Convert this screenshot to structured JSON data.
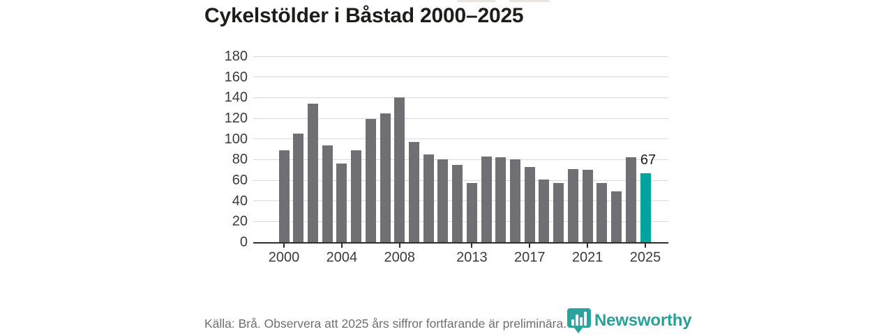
{
  "page": {
    "background": "#ffffff"
  },
  "header": {
    "title": "Cykelstölder i Båstad 2000–2025"
  },
  "chart_data": {
    "type": "bar",
    "title": "Cykelstölder i Båstad 2000–2025",
    "categories": [
      2000,
      2001,
      2002,
      2003,
      2004,
      2005,
      2006,
      2007,
      2008,
      2009,
      2010,
      2011,
      2012,
      2013,
      2014,
      2015,
      2016,
      2017,
      2018,
      2019,
      2020,
      2021,
      2022,
      2023,
      2024,
      2025
    ],
    "values": [
      89,
      105,
      134,
      94,
      76,
      89,
      119,
      125,
      140,
      97,
      85,
      80,
      75,
      57,
      83,
      82,
      80,
      73,
      61,
      57,
      71,
      70,
      57,
      49,
      82,
      67
    ],
    "xlabel": "",
    "ylabel": "",
    "ylim": [
      0,
      180
    ],
    "y_ticks": [
      0,
      20,
      40,
      60,
      80,
      100,
      120,
      140,
      160,
      180
    ],
    "x_tick_labels": [
      "2000",
      "2004",
      "2008",
      "2013",
      "2017",
      "2021",
      "2025"
    ],
    "grid": "horizontal",
    "legend": "none",
    "bar_color": "#707074",
    "highlight_year": 2025,
    "highlight_color": "#00a49c",
    "highlight_value_label": "67"
  },
  "footer": {
    "source_note": "Källa: Brå. Observera att 2025 års siffror fortfarande är preliminära.",
    "brand_name": "Newsworthy",
    "brand_color": "#2aa09a"
  },
  "icons": {
    "logo": "newsworthy-barchart-bubble-icon"
  }
}
